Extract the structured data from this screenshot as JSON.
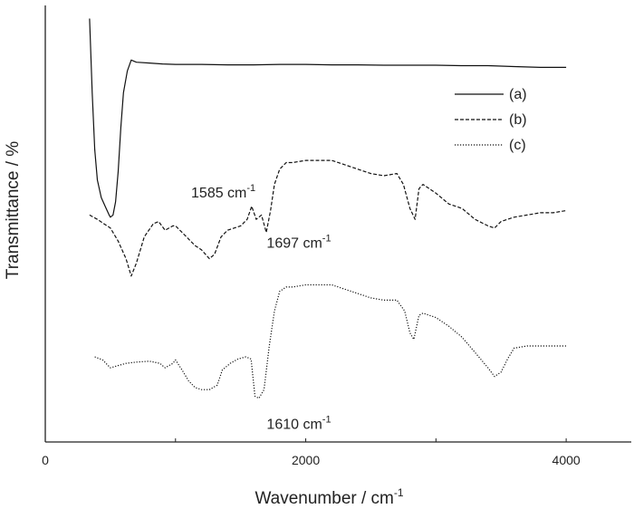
{
  "chart_data": {
    "type": "line",
    "title": "",
    "xlabel": "Wavenumber / cm",
    "xlabel_sup": "-1",
    "ylabel": "Transmittance / %",
    "xlim": [
      0,
      4500
    ],
    "ylim": [
      0,
      100
    ],
    "x_ticks": [
      0,
      2000,
      4000
    ],
    "x_tick_labels": [
      "0",
      "2000",
      "4000"
    ],
    "y_ticks_shown": false,
    "legend_position": "top-right",
    "series": [
      {
        "name": "(a)",
        "style": "solid",
        "color": "#111111",
        "points": [
          [
            340,
            97.0
          ],
          [
            360,
            80.0
          ],
          [
            380,
            67.0
          ],
          [
            400,
            60.0
          ],
          [
            430,
            56.0
          ],
          [
            460,
            54.0
          ],
          [
            490,
            52.0
          ],
          [
            500,
            51.5
          ],
          [
            520,
            52.0
          ],
          [
            540,
            55.0
          ],
          [
            560,
            62.0
          ],
          [
            580,
            72.0
          ],
          [
            600,
            80.0
          ],
          [
            630,
            85.0
          ],
          [
            660,
            87.5
          ],
          [
            700,
            87.0
          ],
          [
            800,
            86.8
          ],
          [
            900,
            86.6
          ],
          [
            1000,
            86.5
          ],
          [
            1200,
            86.5
          ],
          [
            1400,
            86.4
          ],
          [
            1600,
            86.4
          ],
          [
            1800,
            86.5
          ],
          [
            2000,
            86.5
          ],
          [
            2200,
            86.4
          ],
          [
            2400,
            86.4
          ],
          [
            2600,
            86.3
          ],
          [
            2800,
            86.3
          ],
          [
            3000,
            86.3
          ],
          [
            3200,
            86.2
          ],
          [
            3400,
            86.2
          ],
          [
            3600,
            86.0
          ],
          [
            3800,
            85.8
          ],
          [
            4000,
            85.8
          ]
        ]
      },
      {
        "name": "(b)",
        "style": "dashed",
        "color": "#111111",
        "points": [
          [
            340,
            52.0
          ],
          [
            400,
            51.0
          ],
          [
            500,
            49.0
          ],
          [
            560,
            46.0
          ],
          [
            620,
            42.0
          ],
          [
            660,
            38.0
          ],
          [
            700,
            41.0
          ],
          [
            760,
            47.0
          ],
          [
            830,
            50.0
          ],
          [
            870,
            50.5
          ],
          [
            920,
            48.5
          ],
          [
            980,
            49.5
          ],
          [
            1000,
            49.5
          ],
          [
            1050,
            48.0
          ],
          [
            1100,
            46.5
          ],
          [
            1150,
            45.0
          ],
          [
            1200,
            44.0
          ],
          [
            1260,
            42.0
          ],
          [
            1300,
            43.0
          ],
          [
            1350,
            47.0
          ],
          [
            1400,
            48.5
          ],
          [
            1450,
            49.0
          ],
          [
            1500,
            49.5
          ],
          [
            1550,
            51.0
          ],
          [
            1585,
            54.0
          ],
          [
            1620,
            51.0
          ],
          [
            1660,
            52.0
          ],
          [
            1697,
            48.0
          ],
          [
            1730,
            53.0
          ],
          [
            1760,
            59.0
          ],
          [
            1800,
            62.5
          ],
          [
            1850,
            64.0
          ],
          [
            1900,
            64.0
          ],
          [
            2000,
            64.5
          ],
          [
            2100,
            64.5
          ],
          [
            2200,
            64.5
          ],
          [
            2300,
            63.5
          ],
          [
            2400,
            62.5
          ],
          [
            2500,
            61.5
          ],
          [
            2600,
            61.0
          ],
          [
            2700,
            61.5
          ],
          [
            2750,
            59.0
          ],
          [
            2800,
            53.5
          ],
          [
            2840,
            51.0
          ],
          [
            2870,
            58.0
          ],
          [
            2900,
            59.0
          ],
          [
            3000,
            57.0
          ],
          [
            3100,
            54.5
          ],
          [
            3200,
            53.5
          ],
          [
            3300,
            51.0
          ],
          [
            3400,
            49.5
          ],
          [
            3450,
            49.0
          ],
          [
            3500,
            50.5
          ],
          [
            3600,
            51.5
          ],
          [
            3700,
            52.0
          ],
          [
            3800,
            52.5
          ],
          [
            3900,
            52.5
          ],
          [
            4000,
            53.0
          ]
        ]
      },
      {
        "name": "(c)",
        "style": "dotted",
        "color": "#111111",
        "points": [
          [
            380,
            19.5
          ],
          [
            440,
            18.8
          ],
          [
            500,
            17.0
          ],
          [
            560,
            17.5
          ],
          [
            620,
            18.0
          ],
          [
            700,
            18.3
          ],
          [
            800,
            18.5
          ],
          [
            880,
            18.0
          ],
          [
            920,
            17.0
          ],
          [
            980,
            18.0
          ],
          [
            1000,
            18.8
          ],
          [
            1050,
            16.5
          ],
          [
            1100,
            14.0
          ],
          [
            1150,
            12.5
          ],
          [
            1200,
            12.0
          ],
          [
            1260,
            12.0
          ],
          [
            1320,
            13.0
          ],
          [
            1360,
            16.5
          ],
          [
            1420,
            18.0
          ],
          [
            1480,
            19.0
          ],
          [
            1540,
            19.5
          ],
          [
            1580,
            19.0
          ],
          [
            1610,
            10.5
          ],
          [
            1640,
            10.0
          ],
          [
            1680,
            12.0
          ],
          [
            1720,
            22.0
          ],
          [
            1760,
            30.0
          ],
          [
            1800,
            34.5
          ],
          [
            1850,
            35.5
          ],
          [
            1900,
            35.5
          ],
          [
            2000,
            36.0
          ],
          [
            2100,
            36.0
          ],
          [
            2200,
            36.0
          ],
          [
            2300,
            35.0
          ],
          [
            2400,
            34.0
          ],
          [
            2500,
            33.0
          ],
          [
            2600,
            32.5
          ],
          [
            2700,
            32.5
          ],
          [
            2760,
            30.0
          ],
          [
            2800,
            25.0
          ],
          [
            2830,
            23.5
          ],
          [
            2870,
            29.0
          ],
          [
            2900,
            29.5
          ],
          [
            3000,
            28.5
          ],
          [
            3100,
            26.5
          ],
          [
            3200,
            24.0
          ],
          [
            3300,
            20.5
          ],
          [
            3400,
            17.0
          ],
          [
            3450,
            15.0
          ],
          [
            3500,
            16.0
          ],
          [
            3550,
            19.0
          ],
          [
            3600,
            21.5
          ],
          [
            3700,
            22.0
          ],
          [
            3800,
            22.0
          ],
          [
            4000,
            22.0
          ]
        ]
      }
    ],
    "annotations": [
      {
        "text": "1585 cm",
        "sup": "-1",
        "x": 1120,
        "y": 56.0
      },
      {
        "text": "1697 cm",
        "sup": "-1",
        "x": 1700,
        "y": 44.5
      },
      {
        "text": "1610 cm",
        "sup": "-1",
        "x": 1700,
        "y": 3.0
      }
    ]
  }
}
